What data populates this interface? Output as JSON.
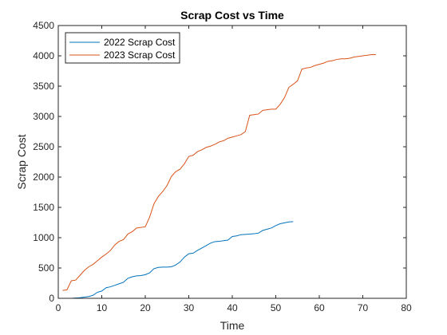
{
  "chart_data": {
    "type": "line",
    "title": "Scrap Cost vs Time",
    "xlabel": "Time",
    "ylabel": "Scrap Cost",
    "xlim": [
      0,
      80
    ],
    "ylim": [
      0,
      4500
    ],
    "xticks": [
      0,
      10,
      20,
      30,
      40,
      50,
      60,
      70,
      80
    ],
    "yticks": [
      0,
      500,
      1000,
      1500,
      2000,
      2500,
      3000,
      3500,
      4000,
      4500
    ],
    "grid": false,
    "legend": "top-left",
    "series": [
      {
        "name": "2022 Scrap Cost",
        "color": "#0072BD",
        "x": [
          1,
          2,
          3,
          4,
          5,
          6,
          7,
          8,
          9,
          10,
          11,
          12,
          13,
          14,
          15,
          16,
          17,
          18,
          19,
          20,
          21,
          22,
          23,
          24,
          25,
          26,
          27,
          28,
          29,
          30,
          31,
          32,
          33,
          34,
          35,
          36,
          37,
          38,
          39,
          40,
          41,
          42,
          43,
          44,
          45,
          46,
          47,
          48,
          49,
          50,
          51,
          52,
          53,
          54
        ],
        "y": [
          0,
          0,
          0,
          5,
          10,
          20,
          30,
          50,
          100,
          120,
          175,
          190,
          215,
          240,
          265,
          330,
          355,
          370,
          375,
          390,
          420,
          490,
          510,
          515,
          515,
          520,
          550,
          600,
          680,
          735,
          745,
          790,
          830,
          870,
          910,
          935,
          940,
          950,
          960,
          1020,
          1030,
          1050,
          1055,
          1060,
          1065,
          1075,
          1120,
          1140,
          1160,
          1200,
          1230,
          1245,
          1260,
          1265
        ]
      },
      {
        "name": "2023 Scrap Cost",
        "color": "#D95319",
        "x": [
          1,
          2,
          3,
          4,
          5,
          6,
          7,
          8,
          9,
          10,
          11,
          12,
          13,
          14,
          15,
          16,
          17,
          18,
          19,
          20,
          21,
          22,
          23,
          24,
          25,
          26,
          27,
          28,
          29,
          30,
          31,
          32,
          33,
          34,
          35,
          36,
          37,
          38,
          39,
          40,
          41,
          42,
          43,
          44,
          45,
          46,
          47,
          48,
          49,
          50,
          51,
          52,
          53,
          54,
          55,
          56,
          57,
          58,
          59,
          60,
          61,
          62,
          63,
          64,
          65,
          66,
          67,
          68,
          69,
          70,
          71,
          72,
          73
        ],
        "y": [
          130,
          140,
          290,
          300,
          380,
          460,
          520,
          560,
          620,
          680,
          730,
          790,
          880,
          940,
          970,
          1060,
          1100,
          1160,
          1170,
          1180,
          1340,
          1560,
          1680,
          1760,
          1860,
          2010,
          2090,
          2130,
          2220,
          2340,
          2360,
          2420,
          2450,
          2490,
          2510,
          2540,
          2580,
          2600,
          2640,
          2660,
          2680,
          2700,
          2750,
          3020,
          3030,
          3040,
          3100,
          3110,
          3120,
          3120,
          3200,
          3310,
          3480,
          3530,
          3590,
          3780,
          3800,
          3810,
          3840,
          3860,
          3880,
          3910,
          3920,
          3940,
          3950,
          3950,
          3960,
          3980,
          3990,
          4000,
          4010,
          4020,
          4020
        ]
      }
    ]
  }
}
